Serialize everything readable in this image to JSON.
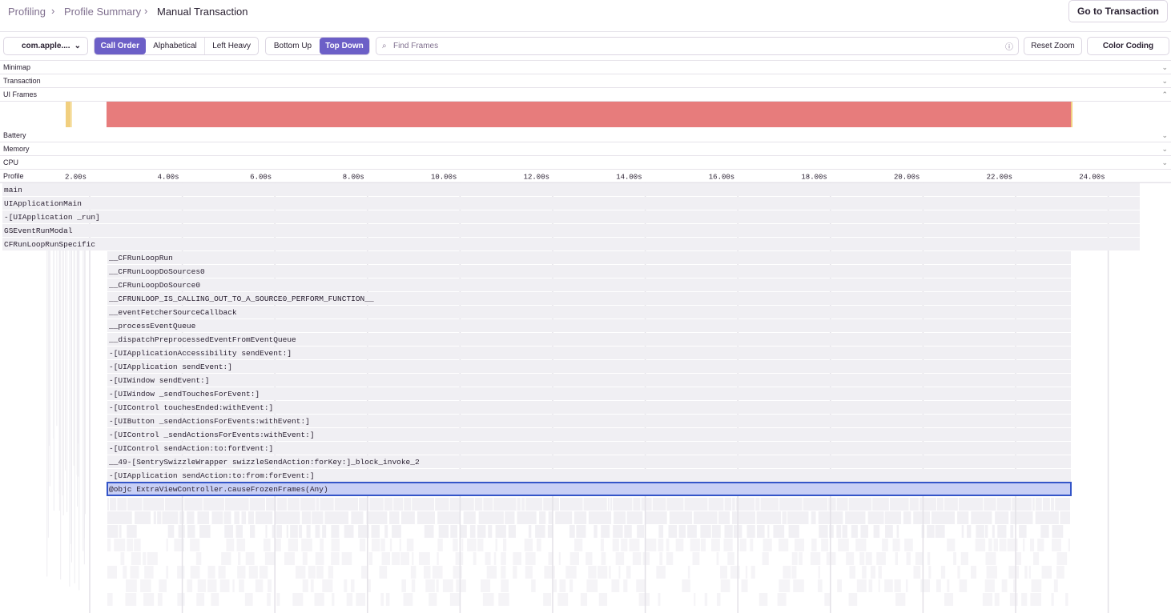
{
  "breadcrumbs": [
    "Profiling",
    "Profile Summary",
    "Manual Transaction"
  ],
  "go_button": "Go to Transaction",
  "thread_select": "com.apple....",
  "sort_options": [
    "Call Order",
    "Alphabetical",
    "Left Heavy"
  ],
  "view_options": [
    "Bottom Up",
    "Top Down"
  ],
  "search_placeholder": "Find Frames",
  "reset_zoom": "Reset Zoom",
  "color_coding": "Color Coding",
  "sections": [
    "Minimap",
    "Transaction",
    "UI Frames",
    "Battery",
    "Memory",
    "CPU",
    "Profile"
  ],
  "timeline_ticks": [
    "2.00s",
    "4.00s",
    "6.00s",
    "8.00s",
    "10.00s",
    "12.00s",
    "14.00s",
    "16.00s",
    "18.00s",
    "20.00s",
    "22.00s",
    "24.00s"
  ],
  "flame_frames": [
    "main",
    "UIApplicationMain",
    "-[UIApplication _run]",
    "GSEventRunModal",
    "CFRunLoopRunSpecific",
    "__CFRunLoopRun",
    "__CFRunLoopDoSources0",
    "__CFRunLoopDoSource0",
    "__CFRUNLOOP_IS_CALLING_OUT_TO_A_SOURCE0_PERFORM_FUNCTION__",
    "__eventFetcherSourceCallback",
    "__processEventQueue",
    "__dispatchPreprocessedEventFromEventQueue",
    "-[UIApplicationAccessibility sendEvent:]",
    "-[UIApplication sendEvent:]",
    "-[UIWindow sendEvent:]",
    "-[UIWindow _sendTouchesForEvent:]",
    "-[UIControl touchesEnded:withEvent:]",
    "-[UIButton _sendActionsForEvents:withEvent:]",
    "-[UIControl _sendActionsForEvents:withEvent:]",
    "-[UIControl sendAction:to:forEvent:]",
    "__49-[SentrySwizzleWrapper swizzleSendAction:forKey:]_block_invoke_2",
    "-[UIApplication sendAction:to:from:forEvent:]",
    "@objc ExtraViewController.causeFrozenFrames(Any)"
  ]
}
